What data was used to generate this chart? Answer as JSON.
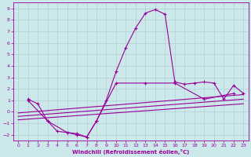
{
  "xlabel": "Windchill (Refroidissement éolien,°C)",
  "xlim": [
    -0.5,
    23.5
  ],
  "ylim": [
    -2.5,
    9.5
  ],
  "xticks": [
    0,
    1,
    2,
    3,
    4,
    5,
    6,
    7,
    8,
    9,
    10,
    11,
    12,
    13,
    14,
    15,
    16,
    17,
    18,
    19,
    20,
    21,
    22,
    23
  ],
  "yticks": [
    -2,
    -1,
    0,
    1,
    2,
    3,
    4,
    5,
    6,
    7,
    8,
    9
  ],
  "bg_color": "#cce8ea",
  "line_color": "#990099",
  "grid_color": "#b0d0d4",
  "line1_x": [
    1,
    2,
    3,
    4,
    5,
    6,
    7,
    8,
    9,
    10,
    11,
    12,
    13,
    14,
    15,
    16,
    17,
    18,
    19,
    20,
    21,
    22,
    23
  ],
  "line1_y": [
    1.1,
    0.7,
    -0.8,
    -1.7,
    -1.8,
    -2.0,
    -2.2,
    -0.8,
    1.0,
    3.5,
    5.6,
    7.3,
    8.6,
    8.9,
    8.5,
    2.6,
    2.4,
    2.5,
    2.6,
    2.5,
    1.1,
    2.3,
    1.6
  ],
  "line2_x": [
    1,
    3,
    5,
    6,
    7,
    8,
    10,
    13,
    16,
    19,
    22
  ],
  "line2_y": [
    1.0,
    -0.8,
    -1.8,
    -1.9,
    -2.2,
    -0.8,
    2.5,
    2.5,
    2.5,
    1.1,
    1.6
  ],
  "line3_x": [
    0,
    23
  ],
  "line3_y": [
    -0.4,
    1.1
  ],
  "line4_x": [
    0,
    23
  ],
  "line4_y": [
    -0.7,
    0.7
  ],
  "line5_x": [
    0,
    23
  ],
  "line5_y": [
    -0.1,
    1.5
  ]
}
